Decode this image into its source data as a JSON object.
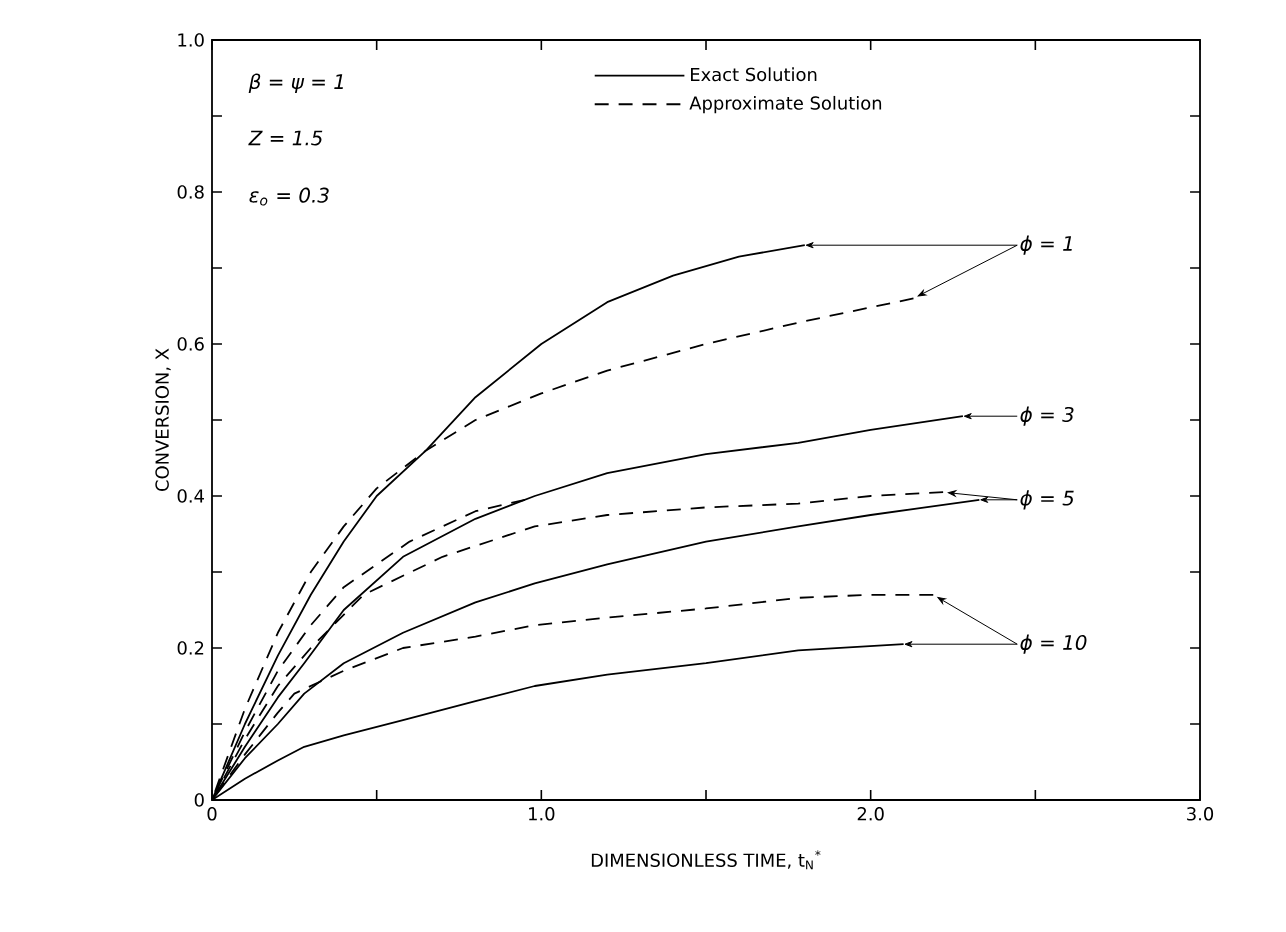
{
  "chart_data": {
    "type": "line",
    "xlabel": "DIMENSIONLESS TIME, t$_{N}$$^{*}$",
    "ylabel": "CONVERSION, X",
    "xlim": [
      0,
      3
    ],
    "ylim": [
      0,
      1
    ],
    "xticks": [
      0,
      {
        "value": 0.5,
        "label": null
      },
      {
        "value": 1,
        "label": "1.0"
      },
      {
        "value": 1.5,
        "label": null
      },
      {
        "value": 2,
        "label": "2.0"
      },
      {
        "value": 2.5,
        "label": null
      },
      {
        "value": 3,
        "label": "3.0"
      }
    ],
    "yticks": [
      0,
      {
        "value": 0.1,
        "label": null
      },
      0.2,
      {
        "value": 0.3,
        "label": null
      },
      0.4,
      {
        "value": 0.5,
        "label": null
      },
      0.6,
      {
        "value": 0.7,
        "label": null
      },
      0.8,
      {
        "value": 0.9,
        "label": null
      },
      {
        "value": 1,
        "label": "1.0"
      }
    ],
    "legend": "top",
    "grid": false,
    "series": [
      {
        "name": "Exact Solution",
        "color": "#000000",
        "line_style": "solid",
        "x": [
          0,
          0.1,
          0.2,
          0.3,
          0.4,
          0.5,
          0.65,
          0.8,
          1.0,
          1.2,
          1.4,
          1.6,
          1.8
        ],
        "values": [
          0,
          0.1,
          0.19,
          0.27,
          0.34,
          0.4,
          0.46,
          0.53,
          0.6,
          0.655,
          0.69,
          0.715,
          0.73
        ]
      },
      {
        "name": "Approximate Solution",
        "color": "#000000",
        "line_style": "dashed",
        "x": [
          0,
          0.1,
          0.2,
          0.3,
          0.4,
          0.5,
          0.65,
          0.8,
          1.0,
          1.2,
          1.5,
          1.8,
          2.13
        ],
        "values": [
          0,
          0.12,
          0.22,
          0.3,
          0.36,
          0.41,
          0.46,
          0.5,
          0.535,
          0.565,
          0.6,
          0.63,
          0.66
        ]
      },
      {
        "color": "#000000",
        "line_style": "solid",
        "x": [
          0,
          0.1,
          0.2,
          0.28,
          0.4,
          0.58,
          0.8,
          0.98,
          1.2,
          1.5,
          1.78,
          2.0,
          2.28
        ],
        "values": [
          0,
          0.07,
          0.135,
          0.18,
          0.25,
          0.32,
          0.37,
          0.4,
          0.43,
          0.455,
          0.47,
          0.487,
          0.505
        ]
      },
      {
        "color": "#000000",
        "line_style": "dashed",
        "x": [
          0,
          0.1,
          0.2,
          0.3,
          0.4,
          0.6,
          0.8,
          0.95
        ],
        "values": [
          0,
          0.09,
          0.17,
          0.23,
          0.28,
          0.34,
          0.38,
          0.395
        ]
      },
      {
        "color": "#000000",
        "line_style": "solid",
        "x": [
          0,
          0.1,
          0.2,
          0.28,
          0.4,
          0.58,
          0.8,
          0.98,
          1.2,
          1.5,
          1.78,
          2.0,
          2.33
        ],
        "values": [
          0,
          0.055,
          0.1,
          0.14,
          0.18,
          0.22,
          0.26,
          0.285,
          0.31,
          0.34,
          0.36,
          0.375,
          0.395
        ]
      },
      {
        "color": "#000000",
        "line_style": "dashed",
        "x": [
          0,
          0.1,
          0.2,
          0.3,
          0.46,
          0.7,
          0.98,
          1.2,
          1.5,
          1.78,
          2.0,
          2.22
        ],
        "values": [
          0,
          0.08,
          0.15,
          0.2,
          0.27,
          0.32,
          0.36,
          0.375,
          0.385,
          0.39,
          0.4,
          0.405
        ]
      },
      {
        "color": "#000000",
        "line_style": "solid",
        "x": [
          0,
          0.1,
          0.2,
          0.28,
          0.4,
          0.58,
          0.8,
          0.98,
          1.2,
          1.5,
          1.78,
          2.1
        ],
        "values": [
          0,
          0.028,
          0.052,
          0.07,
          0.085,
          0.105,
          0.13,
          0.15,
          0.165,
          0.18,
          0.197,
          0.205
        ]
      },
      {
        "color": "#000000",
        "line_style": "dashed",
        "x": [
          0,
          0.1,
          0.2,
          0.25,
          0.4,
          0.58,
          0.8,
          0.98,
          1.2,
          1.5,
          1.78,
          2.0,
          2.19
        ],
        "values": [
          0,
          0.06,
          0.115,
          0.14,
          0.17,
          0.2,
          0.215,
          0.23,
          0.24,
          0.252,
          0.266,
          0.27,
          0.27
        ]
      }
    ],
    "annotations": [
      "β = ψ = 1",
      "Z = 1.5",
      "ε$_{o}$ = 0.3",
      {
        "text": "ϕ = 1",
        "x": 1.8,
        "y": 0.73
      },
      {
        "text": "ϕ = 3",
        "x": 2.28,
        "y": 0.505
      },
      {
        "text": "ϕ = 5",
        "x": 2.33,
        "y": 0.395
      },
      {
        "text": "ϕ = 10",
        "x": 2.1,
        "y": 0.205
      }
    ]
  }
}
